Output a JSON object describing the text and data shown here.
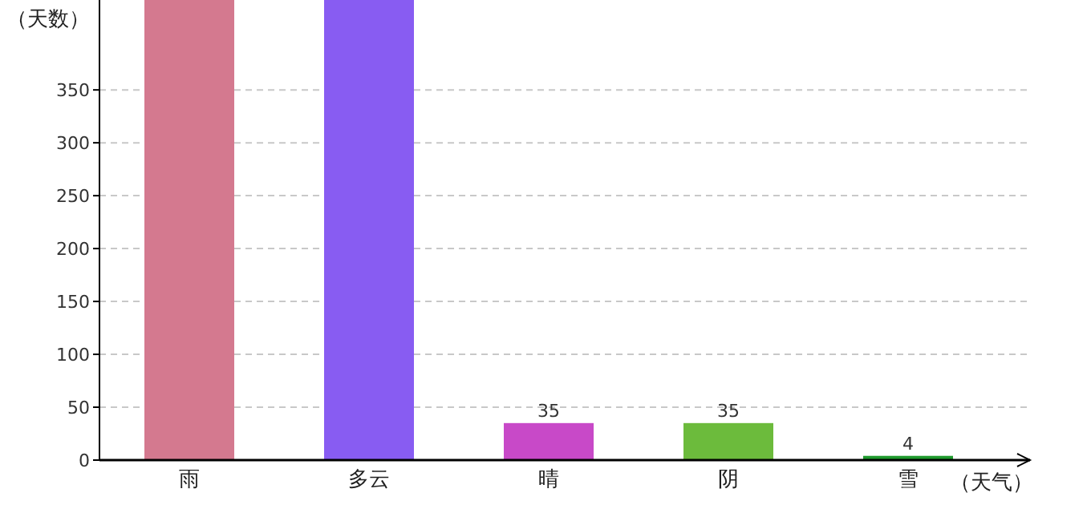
{
  "chart_data": {
    "type": "bar",
    "ylabel": "（天数）",
    "xlabel": "（天气）",
    "categories": [
      "雨",
      "多云",
      "晴",
      "阴",
      "雪"
    ],
    "values": [
      435,
      435,
      35,
      35,
      4
    ],
    "colors": [
      "#d4798f",
      "#885cf2",
      "#c849c8",
      "#6cbb3c",
      "#1f9a2d"
    ],
    "value_labels": [
      null,
      null,
      "35",
      "35",
      "4"
    ],
    "ylim": [
      0,
      435
    ],
    "yticks": [
      0,
      50,
      100,
      150,
      200,
      250,
      300,
      350
    ],
    "grid": "y"
  }
}
